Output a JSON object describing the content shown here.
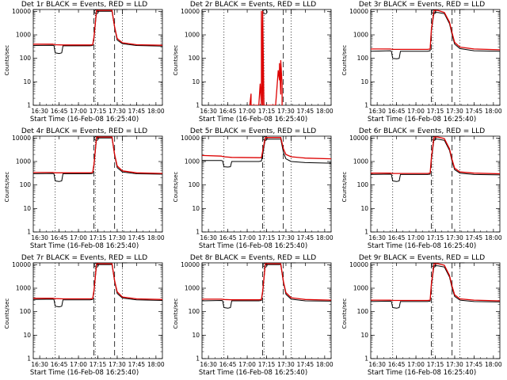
{
  "chart_data": [
    {
      "type": "line",
      "title": "Det 1r BLACK = Events, RED = LLD",
      "xlabel": "Start Time (16-Feb-08 16:25:40)",
      "ylabel": "Counts/sec",
      "yscale": "log",
      "ylim": [
        1,
        12000
      ],
      "xlim": [
        "16:25",
        "18:05"
      ],
      "xticks": [
        "16:30",
        "16:45",
        "17:00",
        "17:15",
        "17:30",
        "17:45",
        "18:00"
      ],
      "yticks": [
        "1",
        "10",
        "100",
        "1000",
        "10000"
      ],
      "dotted_lines": [
        "16:42",
        "17:13",
        "17:34"
      ],
      "dashed_lines": [
        "17:12",
        "17:28"
      ],
      "series": [
        {
          "name": "Events",
          "color": "#000000",
          "x": [
            "16:25",
            "16:40",
            "16:41",
            "16:42",
            "16:45",
            "16:47",
            "16:48",
            "17:09",
            "17:11",
            "17:12",
            "17:14",
            "17:26",
            "17:28",
            "17:30",
            "17:34",
            "17:45",
            "18:05"
          ],
          "y": [
            350,
            360,
            350,
            170,
            160,
            170,
            340,
            340,
            350,
            700,
            10000,
            10000,
            2000,
            600,
            420,
            350,
            330
          ]
        },
        {
          "name": "LLD",
          "color": "#dd0000",
          "x": [
            "16:25",
            "16:40",
            "16:42",
            "16:48",
            "17:09",
            "17:11",
            "17:12",
            "17:14",
            "17:26",
            "17:28",
            "17:30",
            "17:34",
            "17:45",
            "18:05"
          ],
          "y": [
            400,
            400,
            380,
            370,
            370,
            380,
            800,
            11000,
            11000,
            2200,
            700,
            460,
            380,
            360
          ]
        }
      ]
    },
    {
      "type": "line",
      "title": "Det 2r BLACK = Events, RED = LLD",
      "xlabel": "Start Time (16-Feb-08 16:25:40)",
      "ylabel": "Counts/sec",
      "yscale": "log",
      "ylim": [
        1,
        12000
      ],
      "xlim": [
        "16:25",
        "18:05"
      ],
      "xticks": [
        "16:30",
        "16:45",
        "17:00",
        "17:15",
        "17:30",
        "17:45",
        "18:00"
      ],
      "yticks": [
        "1",
        "10",
        "100",
        "1000",
        "10000"
      ],
      "dotted_lines": [
        "16:42",
        "17:13",
        "17:34"
      ],
      "dashed_lines": [
        "17:12",
        "17:28"
      ],
      "series": [
        {
          "name": "Events",
          "color": "#000000",
          "x": [
            "17:11",
            "17:11",
            "17:12",
            "17:12",
            "17:12"
          ],
          "y": [
            1,
            300,
            1000,
            200,
            1
          ]
        },
        {
          "name": "LLD",
          "color": "#dd0000",
          "x": [
            "17:02",
            "17:03",
            "17:03",
            "17:09",
            "17:10",
            "17:11",
            "17:11",
            "17:12",
            "17:12",
            "17:12",
            "17:13",
            "17:22",
            "17:23",
            "17:24",
            "17:25",
            "17:25",
            "17:26",
            "17:26",
            "17:27",
            "17:27"
          ],
          "y": [
            1,
            3,
            1,
            1,
            8,
            1,
            10000,
            1,
            30,
            10000,
            1,
            1,
            5,
            30,
            12,
            60,
            3,
            80,
            8,
            1
          ]
        }
      ]
    },
    {
      "type": "line",
      "title": "Det 3r BLACK = Events, RED = LLD",
      "xlabel": "Start Time (16-Feb-08 16:25:40)",
      "ylabel": "Counts/sec",
      "yscale": "log",
      "ylim": [
        1,
        12000
      ],
      "xlim": [
        "16:25",
        "18:05"
      ],
      "xticks": [
        "16:30",
        "16:45",
        "17:00",
        "17:15",
        "17:30",
        "17:45",
        "18:00"
      ],
      "yticks": [
        "1",
        "10",
        "100",
        "1000",
        "10000"
      ],
      "dotted_lines": [
        "16:42",
        "17:13",
        "17:34"
      ],
      "dashed_lines": [
        "17:12",
        "17:28"
      ],
      "series": [
        {
          "name": "Events",
          "color": "#000000",
          "x": [
            "16:25",
            "16:40",
            "16:41",
            "16:42",
            "16:45",
            "16:47",
            "16:48",
            "17:09",
            "17:11",
            "17:12",
            "17:14",
            "17:17",
            "17:22",
            "17:26",
            "17:28",
            "17:30",
            "17:34",
            "17:45",
            "18:05"
          ],
          "y": [
            200,
            210,
            200,
            100,
            95,
            100,
            200,
            200,
            210,
            1500,
            9000,
            9000,
            8000,
            3000,
            1000,
            400,
            260,
            210,
            200
          ]
        },
        {
          "name": "LLD",
          "color": "#dd0000",
          "x": [
            "16:25",
            "16:40",
            "16:42",
            "16:48",
            "17:09",
            "17:11",
            "17:12",
            "17:14",
            "17:17",
            "17:22",
            "17:26",
            "17:28",
            "17:30",
            "17:34",
            "17:45",
            "18:05"
          ],
          "y": [
            250,
            250,
            240,
            240,
            240,
            250,
            1800,
            11000,
            11000,
            9000,
            3500,
            1200,
            480,
            300,
            250,
            230
          ]
        }
      ]
    },
    {
      "type": "line",
      "title": "Det 4r BLACK = Events, RED = LLD",
      "xlabel": "Start Time (16-Feb-08 16:25:40)",
      "ylabel": "Counts/sec",
      "yscale": "log",
      "ylim": [
        1,
        12000
      ],
      "xlim": [
        "16:25",
        "18:05"
      ],
      "xticks": [
        "16:30",
        "16:45",
        "17:00",
        "17:15",
        "17:30",
        "17:45",
        "18:00"
      ],
      "yticks": [
        "1",
        "10",
        "100",
        "1000",
        "10000"
      ],
      "dotted_lines": [
        "16:42",
        "17:13",
        "17:34"
      ],
      "dashed_lines": [
        "17:12",
        "17:28"
      ],
      "series": [
        {
          "name": "Events",
          "color": "#000000",
          "x": [
            "16:25",
            "16:40",
            "16:41",
            "16:42",
            "16:45",
            "16:47",
            "16:48",
            "17:09",
            "17:11",
            "17:12",
            "17:14",
            "17:26",
            "17:28",
            "17:30",
            "17:34",
            "17:45",
            "18:05"
          ],
          "y": [
            300,
            310,
            300,
            150,
            140,
            150,
            300,
            300,
            310,
            650,
            10000,
            10000,
            1800,
            550,
            360,
            300,
            290
          ]
        },
        {
          "name": "LLD",
          "color": "#dd0000",
          "x": [
            "16:25",
            "16:40",
            "16:42",
            "16:48",
            "17:09",
            "17:11",
            "17:12",
            "17:14",
            "17:26",
            "17:28",
            "17:30",
            "17:34",
            "17:45",
            "18:05"
          ],
          "y": [
            340,
            340,
            330,
            330,
            330,
            340,
            750,
            11000,
            11000,
            2000,
            650,
            400,
            330,
            310
          ]
        }
      ]
    },
    {
      "type": "line",
      "title": "Det 5r BLACK = Events, RED = LLD",
      "xlabel": "Start Time (16-Feb-08 16:25:40)",
      "ylabel": "Counts/sec",
      "yscale": "log",
      "ylim": [
        1,
        12000
      ],
      "xlim": [
        "16:25",
        "18:05"
      ],
      "xticks": [
        "16:30",
        "16:45",
        "17:00",
        "17:15",
        "17:30",
        "17:45",
        "18:00"
      ],
      "yticks": [
        "1",
        "10",
        "100",
        "1000",
        "10000"
      ],
      "dotted_lines": [
        "16:42",
        "17:13",
        "17:34"
      ],
      "dashed_lines": [
        "17:12",
        "17:28"
      ],
      "series": [
        {
          "name": "Events",
          "color": "#000000",
          "x": [
            "16:25",
            "16:40",
            "16:41",
            "16:42",
            "16:45",
            "16:47",
            "16:48",
            "17:09",
            "17:11",
            "17:12",
            "17:14",
            "17:26",
            "17:28",
            "17:30",
            "17:34",
            "17:45",
            "18:05"
          ],
          "y": [
            1100,
            1100,
            1050,
            600,
            580,
            600,
            1000,
            1000,
            1050,
            2000,
            9000,
            9000,
            2500,
            1300,
            1000,
            900,
            850
          ]
        },
        {
          "name": "LLD",
          "color": "#dd0000",
          "x": [
            "16:25",
            "16:40",
            "16:42",
            "16:48",
            "17:09",
            "17:11",
            "17:12",
            "17:14",
            "17:26",
            "17:28",
            "17:30",
            "17:34",
            "17:45",
            "18:05"
          ],
          "y": [
            1800,
            1700,
            1600,
            1500,
            1450,
            1450,
            2800,
            10500,
            10500,
            3500,
            2000,
            1600,
            1400,
            1300
          ]
        }
      ]
    },
    {
      "type": "line",
      "title": "Det 6r BLACK = Events, RED = LLD",
      "xlabel": "Start Time (16-Feb-08 16:25:40)",
      "ylabel": "Counts/sec",
      "yscale": "log",
      "ylim": [
        1,
        12000
      ],
      "xlim": [
        "16:25",
        "18:05"
      ],
      "xticks": [
        "16:30",
        "16:45",
        "17:00",
        "17:15",
        "17:30",
        "17:45",
        "18:00"
      ],
      "yticks": [
        "1",
        "10",
        "100",
        "1000",
        "10000"
      ],
      "dotted_lines": [
        "16:42",
        "17:13",
        "17:34"
      ],
      "dashed_lines": [
        "17:12",
        "17:28"
      ],
      "series": [
        {
          "name": "Events",
          "color": "#000000",
          "x": [
            "16:25",
            "16:40",
            "16:41",
            "16:42",
            "16:45",
            "16:47",
            "16:48",
            "17:09",
            "17:11",
            "17:12",
            "17:14",
            "17:17",
            "17:22",
            "17:26",
            "17:28",
            "17:30",
            "17:34",
            "17:45",
            "18:05"
          ],
          "y": [
            280,
            290,
            280,
            150,
            140,
            150,
            280,
            280,
            290,
            1200,
            9000,
            9000,
            8000,
            3000,
            1000,
            450,
            320,
            280,
            270
          ]
        },
        {
          "name": "LLD",
          "color": "#dd0000",
          "x": [
            "16:25",
            "16:40",
            "16:42",
            "16:48",
            "17:09",
            "17:11",
            "17:12",
            "17:14",
            "17:17",
            "17:22",
            "17:26",
            "17:28",
            "17:30",
            "17:34",
            "17:45",
            "18:05"
          ],
          "y": [
            320,
            320,
            310,
            310,
            310,
            320,
            1500,
            11000,
            11000,
            9500,
            3500,
            1200,
            520,
            360,
            320,
            300
          ]
        }
      ]
    },
    {
      "type": "line",
      "title": "Det 7r BLACK = Events, RED = LLD",
      "xlabel": "Start Time (16-Feb-08 16:25:40)",
      "ylabel": "Counts/sec",
      "yscale": "log",
      "ylim": [
        1,
        12000
      ],
      "xlim": [
        "16:25",
        "18:05"
      ],
      "xticks": [
        "16:30",
        "16:45",
        "17:00",
        "17:15",
        "17:30",
        "17:45",
        "18:00"
      ],
      "yticks": [
        "1",
        "10",
        "100",
        "1000",
        "10000"
      ],
      "dotted_lines": [
        "16:42",
        "17:13",
        "17:34"
      ],
      "dashed_lines": [
        "17:12",
        "17:28"
      ],
      "series": [
        {
          "name": "Events",
          "color": "#000000",
          "x": [
            "16:25",
            "16:40",
            "16:41",
            "16:42",
            "16:45",
            "16:47",
            "16:48",
            "17:09",
            "17:11",
            "17:12",
            "17:14",
            "17:26",
            "17:28",
            "17:30",
            "17:34",
            "17:45",
            "18:05"
          ],
          "y": [
            330,
            340,
            330,
            170,
            160,
            170,
            320,
            320,
            330,
            700,
            10000,
            10000,
            1900,
            600,
            380,
            320,
            300
          ]
        },
        {
          "name": "LLD",
          "color": "#dd0000",
          "x": [
            "16:25",
            "16:40",
            "16:42",
            "16:48",
            "17:09",
            "17:11",
            "17:12",
            "17:14",
            "17:26",
            "17:28",
            "17:30",
            "17:34",
            "17:45",
            "18:05"
          ],
          "y": [
            370,
            370,
            360,
            350,
            350,
            360,
            800,
            11000,
            11000,
            2100,
            700,
            420,
            350,
            330
          ]
        }
      ]
    },
    {
      "type": "line",
      "title": "Det 8r BLACK = Events, RED = LLD",
      "xlabel": "Start Time (16-Feb-08 16:25:40)",
      "ylabel": "Counts/sec",
      "yscale": "log",
      "ylim": [
        1,
        12000
      ],
      "xlim": [
        "16:25",
        "18:05"
      ],
      "xticks": [
        "16:30",
        "16:45",
        "17:00",
        "17:15",
        "17:30",
        "17:45",
        "18:00"
      ],
      "yticks": [
        "1",
        "10",
        "100",
        "1000",
        "10000"
      ],
      "dotted_lines": [
        "16:42",
        "17:13",
        "17:34"
      ],
      "dashed_lines": [
        "17:12",
        "17:28"
      ],
      "series": [
        {
          "name": "Events",
          "color": "#000000",
          "x": [
            "16:25",
            "16:40",
            "16:41",
            "16:42",
            "16:45",
            "16:47",
            "16:48",
            "17:09",
            "17:11",
            "17:12",
            "17:14",
            "17:26",
            "17:28",
            "17:30",
            "17:34",
            "17:45",
            "18:05"
          ],
          "y": [
            290,
            300,
            290,
            150,
            140,
            150,
            290,
            290,
            300,
            650,
            10000,
            10000,
            1800,
            550,
            340,
            290,
            280
          ]
        },
        {
          "name": "LLD",
          "color": "#dd0000",
          "x": [
            "16:25",
            "16:40",
            "16:42",
            "16:48",
            "17:09",
            "17:11",
            "17:12",
            "17:14",
            "17:26",
            "17:28",
            "17:30",
            "17:34",
            "17:45",
            "18:05"
          ],
          "y": [
            340,
            340,
            330,
            320,
            320,
            330,
            750,
            11000,
            11000,
            2000,
            650,
            390,
            330,
            310
          ]
        }
      ]
    },
    {
      "type": "line",
      "title": "Det 9r BLACK = Events, RED = LLD",
      "xlabel": "Start Time (16-Feb-08 16:25:40)",
      "ylabel": "Counts/sec",
      "yscale": "log",
      "ylim": [
        1,
        12000
      ],
      "xlim": [
        "16:25",
        "18:05"
      ],
      "xticks": [
        "16:30",
        "16:45",
        "17:00",
        "17:15",
        "17:30",
        "17:45",
        "18:00"
      ],
      "yticks": [
        "1",
        "10",
        "100",
        "1000",
        "10000"
      ],
      "dotted_lines": [
        "16:42",
        "17:13",
        "17:34"
      ],
      "dashed_lines": [
        "17:12",
        "17:28"
      ],
      "series": [
        {
          "name": "Events",
          "color": "#000000",
          "x": [
            "16:25",
            "16:40",
            "16:41",
            "16:42",
            "16:45",
            "16:47",
            "16:48",
            "17:09",
            "17:11",
            "17:12",
            "17:14",
            "17:17",
            "17:22",
            "17:26",
            "17:28",
            "17:30",
            "17:34",
            "17:45",
            "18:05"
          ],
          "y": [
            270,
            280,
            270,
            150,
            140,
            150,
            270,
            270,
            280,
            1300,
            9000,
            9000,
            8000,
            3000,
            1000,
            450,
            310,
            270,
            260
          ]
        },
        {
          "name": "LLD",
          "color": "#dd0000",
          "x": [
            "16:25",
            "16:40",
            "16:42",
            "16:48",
            "17:09",
            "17:11",
            "17:12",
            "17:14",
            "17:17",
            "17:22",
            "17:26",
            "17:28",
            "17:30",
            "17:34",
            "17:45",
            "18:05"
          ],
          "y": [
            310,
            310,
            300,
            300,
            300,
            310,
            1600,
            11000,
            11000,
            9500,
            3500,
            1200,
            520,
            350,
            310,
            290
          ]
        }
      ]
    }
  ]
}
